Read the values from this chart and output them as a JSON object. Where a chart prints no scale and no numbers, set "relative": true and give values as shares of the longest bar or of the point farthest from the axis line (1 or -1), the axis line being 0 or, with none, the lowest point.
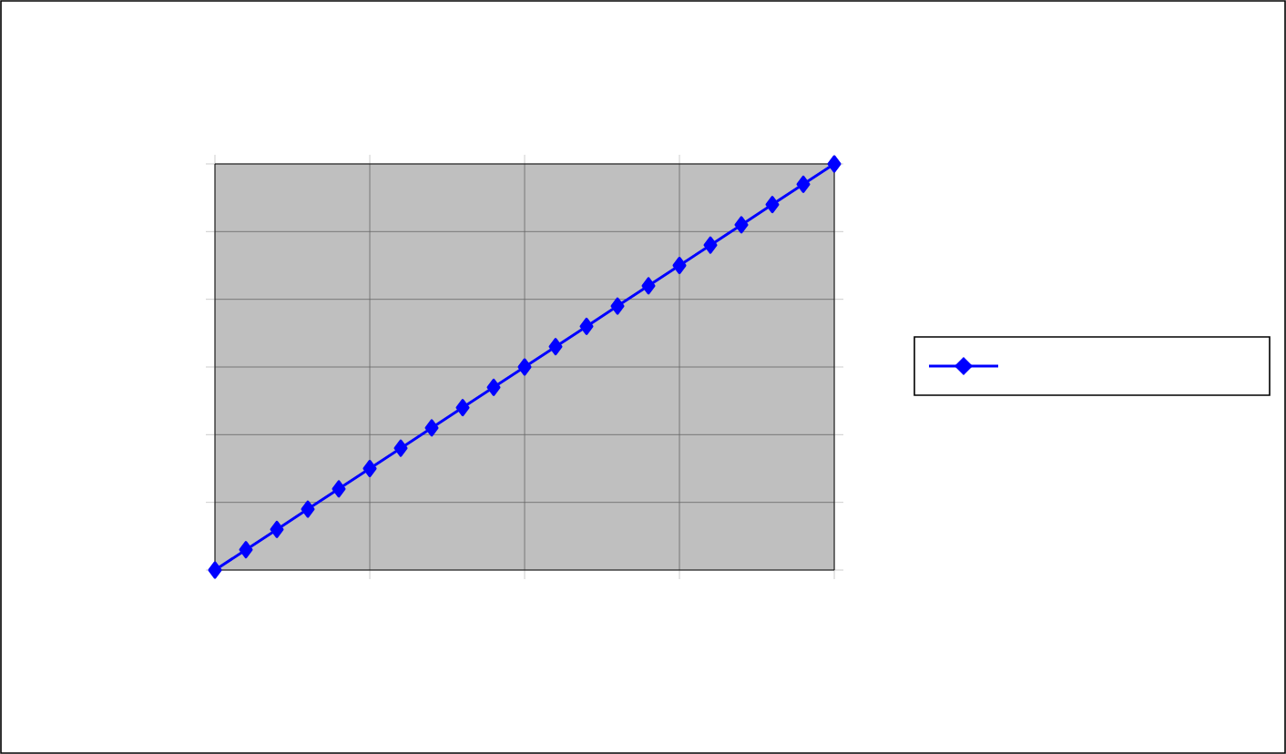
{
  "chart_data": {
    "type": "line",
    "relative": true,
    "categories": [
      null,
      null,
      null,
      null,
      null,
      null,
      null,
      null,
      null,
      null,
      null,
      null,
      null,
      null,
      null,
      null,
      null,
      null,
      null,
      null,
      null
    ],
    "series": [
      {
        "color": "#0000ff",
        "values": [
          0,
          0.05,
          0.1,
          0.15,
          0.2,
          0.25,
          0.3,
          0.35,
          0.4,
          0.45,
          0.5,
          0.55,
          0.6,
          0.65,
          0.7,
          0.75,
          0.8,
          0.85,
          0.9,
          0.95,
          1
        ]
      }
    ],
    "marker": "diamond",
    "line_style": "solid",
    "grid": true
  }
}
